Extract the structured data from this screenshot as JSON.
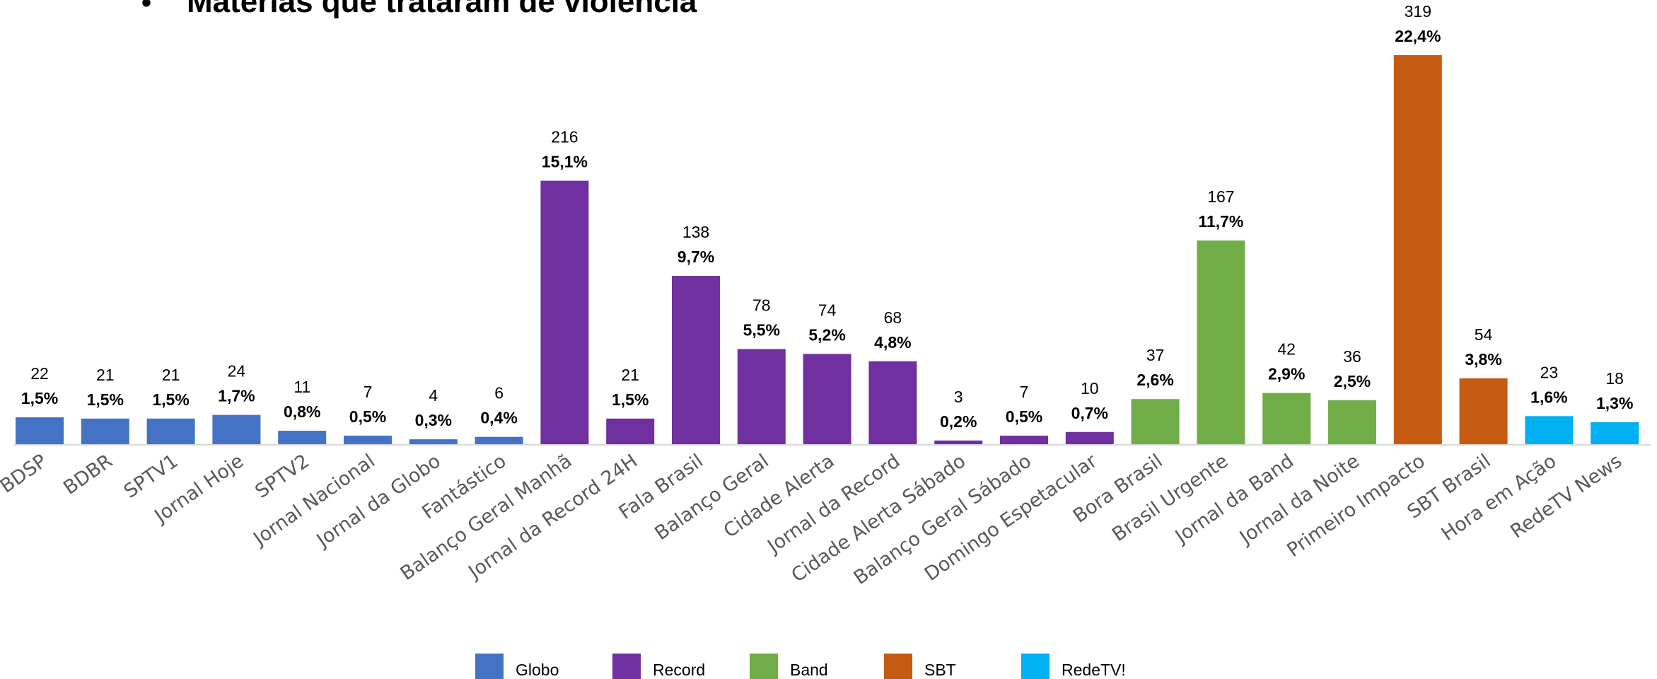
{
  "title": "Matérias que trataram de violência",
  "title_bullet": "•",
  "chart_data": {
    "type": "bar",
    "title": "Matérias que trataram de violência",
    "categories": [
      "BDSP",
      "BDBR",
      "SPTV1",
      "Jornal Hoje",
      "SPTV2",
      "Jornal Nacional",
      "Jornal da Globo",
      "Fantástico",
      "Balanço Geral Manhã",
      "Jornal da Record 24H",
      "Fala Brasil",
      "Balanço Geral",
      "Cidade Alerta",
      "Jornal da Record",
      "Cidade Alerta Sábado",
      "Balanço Geral Sábado",
      "Domingo Espetacular",
      "Bora Brasil",
      "Brasil Urgente",
      "Jornal da Band",
      "Jornal da Noite",
      "Primeiro Impacto",
      "SBT Brasil",
      "Hora em Ação",
      "RedeTV News"
    ],
    "values": [
      22,
      21,
      21,
      24,
      11,
      7,
      4,
      6,
      216,
      21,
      138,
      78,
      74,
      68,
      3,
      7,
      10,
      37,
      167,
      42,
      36,
      319,
      54,
      23,
      18
    ],
    "percent_labels": [
      "1,5%",
      "1,5%",
      "1,5%",
      "1,7%",
      "0,8%",
      "0,5%",
      "0,3%",
      "0,4%",
      "15,1%",
      "1,5%",
      "9,7%",
      "5,5%",
      "5,2%",
      "4,8%",
      "0,2%",
      "0,5%",
      "0,7%",
      "2,6%",
      "11,7%",
      "2,9%",
      "2,5%",
      "22,4%",
      "3,8%",
      "1,6%",
      "1,3%"
    ],
    "groups": [
      "Globo",
      "Globo",
      "Globo",
      "Globo",
      "Globo",
      "Globo",
      "Globo",
      "Globo",
      "Record",
      "Record",
      "Record",
      "Record",
      "Record",
      "Record",
      "Record",
      "Record",
      "Record",
      "Band",
      "Band",
      "Band",
      "Band",
      "SBT",
      "SBT",
      "RedeTV!",
      "RedeTV!"
    ],
    "legend": [
      {
        "name": "Globo",
        "color": "#4472C4"
      },
      {
        "name": "Record",
        "color": "#7030A0"
      },
      {
        "name": "Band",
        "color": "#70AD47"
      },
      {
        "name": "SBT",
        "color": "#C55A11"
      },
      {
        "name": "RedeTV!",
        "color": "#00B0F0"
      }
    ],
    "legend_position": "bottom",
    "grid": false,
    "xlabel": "",
    "ylabel": "",
    "ylim": [
      0,
      319
    ]
  }
}
